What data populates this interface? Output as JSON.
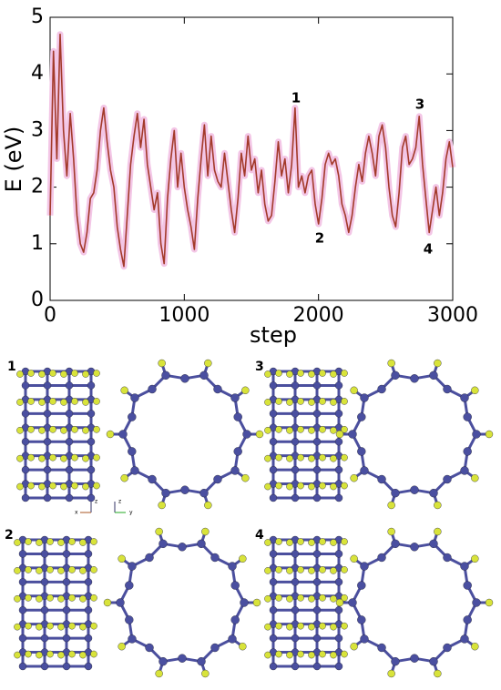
{
  "chart_data": {
    "type": "line",
    "xlabel": "step",
    "ylabel": "E (eV)",
    "xlim": [
      0,
      3000
    ],
    "ylim": [
      0,
      5
    ],
    "xticks": [
      0,
      1000,
      2000,
      3000
    ],
    "yticks": [
      0,
      1,
      2,
      3,
      4,
      5
    ],
    "annotations": [
      "1",
      "2",
      "3",
      "4"
    ],
    "x": [
      0,
      25,
      50,
      75,
      100,
      125,
      150,
      175,
      200,
      225,
      250,
      275,
      300,
      325,
      350,
      375,
      400,
      425,
      450,
      475,
      500,
      525,
      550,
      575,
      600,
      625,
      650,
      675,
      700,
      725,
      750,
      775,
      800,
      825,
      850,
      875,
      900,
      925,
      950,
      975,
      1000,
      1025,
      1050,
      1075,
      1100,
      1125,
      1150,
      1175,
      1200,
      1225,
      1250,
      1275,
      1300,
      1325,
      1350,
      1375,
      1400,
      1425,
      1450,
      1475,
      1500,
      1525,
      1550,
      1575,
      1600,
      1625,
      1650,
      1675,
      1700,
      1725,
      1750,
      1775,
      1800,
      1825,
      1850,
      1875,
      1900,
      1925,
      1950,
      1975,
      2000,
      2025,
      2050,
      2075,
      2100,
      2125,
      2150,
      2175,
      2200,
      2225,
      2250,
      2275,
      2300,
      2325,
      2350,
      2375,
      2400,
      2425,
      2450,
      2475,
      2500,
      2525,
      2550,
      2575,
      2600,
      2625,
      2650,
      2675,
      2700,
      2725,
      2750,
      2775,
      2800,
      2825,
      2850,
      2875,
      2900,
      2925,
      2950,
      2975,
      3000
    ],
    "series": [
      {
        "name": "E",
        "color": "#a33a2a",
        "values": [
          1.5,
          4.4,
          2.5,
          4.7,
          3.0,
          2.2,
          3.3,
          2.5,
          1.5,
          1.0,
          0.85,
          1.2,
          1.8,
          1.9,
          2.3,
          3.0,
          3.4,
          2.8,
          2.3,
          2.0,
          1.3,
          0.9,
          0.6,
          1.5,
          2.4,
          2.9,
          3.3,
          2.7,
          3.2,
          2.4,
          2.0,
          1.6,
          1.9,
          1.0,
          0.65,
          1.8,
          2.5,
          3.0,
          2.0,
          2.6,
          2.0,
          1.6,
          1.3,
          0.9,
          1.8,
          2.5,
          3.1,
          2.2,
          2.9,
          2.3,
          2.1,
          2.0,
          2.6,
          2.1,
          1.6,
          1.2,
          1.8,
          2.6,
          2.2,
          2.9,
          2.3,
          2.5,
          1.9,
          2.3,
          1.7,
          1.4,
          1.5,
          2.1,
          2.8,
          2.2,
          2.5,
          1.9,
          2.4,
          3.4,
          2.0,
          2.2,
          1.9,
          2.2,
          2.3,
          1.7,
          1.35,
          1.8,
          2.4,
          2.6,
          2.4,
          2.5,
          2.2,
          1.7,
          1.5,
          1.2,
          1.5,
          2.0,
          2.4,
          2.1,
          2.6,
          2.9,
          2.6,
          2.2,
          2.9,
          3.1,
          2.7,
          2.0,
          1.5,
          1.3,
          1.9,
          2.7,
          2.9,
          2.4,
          2.5,
          2.7,
          3.25,
          2.4,
          1.8,
          1.2,
          1.6,
          2.0,
          1.5,
          1.9,
          2.5,
          2.8,
          2.35
        ]
      }
    ]
  },
  "structures": {
    "panels": [
      {
        "label": "1",
        "axes": [
          "z",
          "x",
          "z",
          "y"
        ]
      },
      {
        "label": "3"
      },
      {
        "label": "2"
      },
      {
        "label": "4"
      }
    ]
  }
}
